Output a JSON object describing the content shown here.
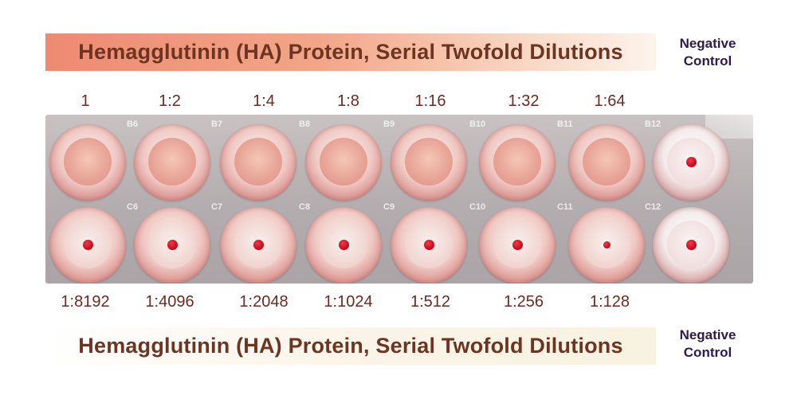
{
  "header": {
    "title": "Hemagglutinin (HA) Protein, Serial Twofold Dilutions",
    "negative_label_line1": "Negative",
    "negative_label_line2": "Control"
  },
  "footer": {
    "title": "Hemagglutinin (HA) Protein, Serial Twofold Dilutions",
    "negative_label_line1": "Negative",
    "negative_label_line2": "Control"
  },
  "top_dilutions": [
    "1",
    "1:2",
    "1:4",
    "1:8",
    "1:16",
    "1:32",
    "1:64"
  ],
  "bottom_dilutions": [
    "1:8192",
    "1:4096",
    "1:2048",
    "1:1024",
    "1:512",
    "1:256",
    "1:128"
  ],
  "plate": {
    "top_row_codes": [
      "B6",
      "B7",
      "B8",
      "B9",
      "B10",
      "B11",
      "B12"
    ],
    "bottom_row_codes": [
      "C6",
      "C7",
      "C8",
      "C9",
      "C10",
      "C11",
      "C12"
    ]
  },
  "colors": {
    "title_text": "#6e3422",
    "negative_text": "#2e1a4e",
    "dilution_text": "#6b2a22",
    "rbc_button": "#c4101e"
  }
}
